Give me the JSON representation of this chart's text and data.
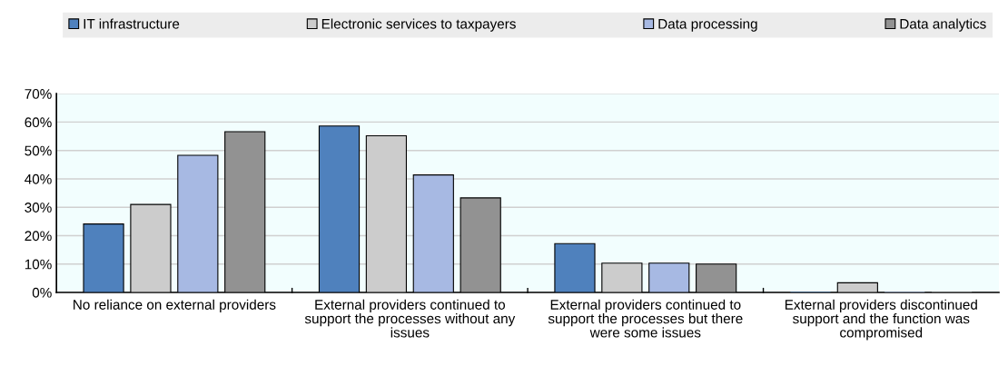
{
  "chart_data": {
    "type": "bar",
    "categories": [
      "No reliance on external providers",
      "External providers continued to support the processes without any issues",
      "External providers continued to support the processes but there were some issues",
      "External providers discontinued support and the function was compromised"
    ],
    "series": [
      {
        "name": "IT infrastructure",
        "color": "#4f81bd",
        "values": [
          24.1,
          58.6,
          17.2,
          0
        ]
      },
      {
        "name": "Electronic services to taxpayers",
        "color": "#cccccc",
        "values": [
          31.0,
          55.2,
          10.3,
          3.4
        ]
      },
      {
        "name": "Data processing",
        "color": "#a7b9e3",
        "values": [
          48.3,
          41.4,
          10.3,
          0
        ]
      },
      {
        "name": "Data analytics",
        "color": "#929292",
        "values": [
          56.6,
          33.3,
          10.0,
          0
        ]
      }
    ],
    "ylim": [
      0,
      70
    ],
    "yticks": [
      {
        "value": 0,
        "label": "0%"
      },
      {
        "value": 10,
        "label": "10%"
      },
      {
        "value": 20,
        "label": "20%"
      },
      {
        "value": 30,
        "label": "30%"
      },
      {
        "value": 40,
        "label": "40%"
      },
      {
        "value": 50,
        "label": "50%"
      },
      {
        "value": 60,
        "label": "60%"
      },
      {
        "value": 70,
        "label": "70%"
      }
    ],
    "grid": "y",
    "legend": "top"
  }
}
